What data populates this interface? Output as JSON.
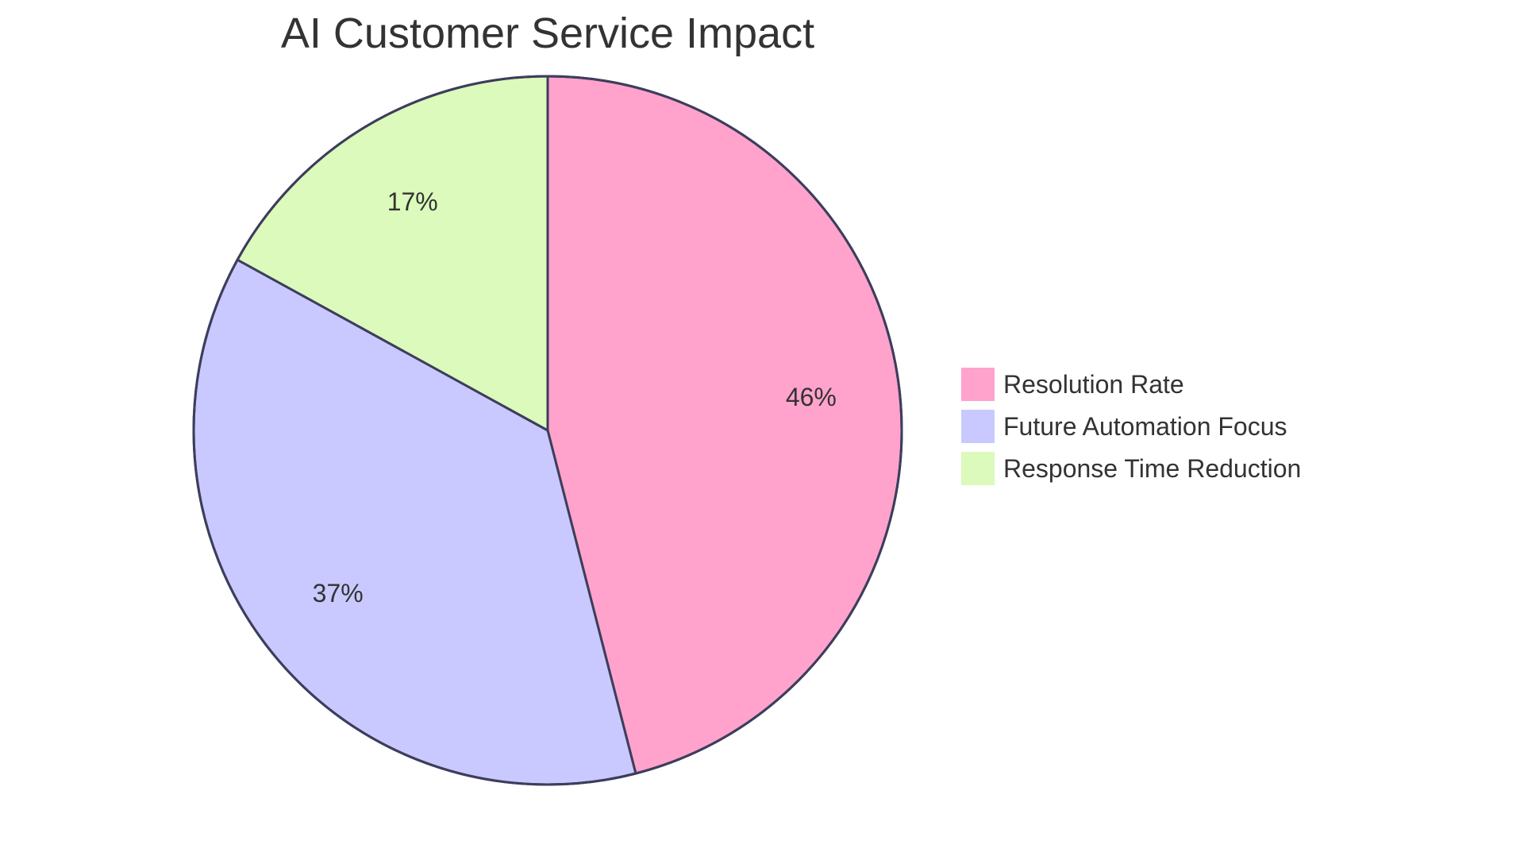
{
  "chart_data": {
    "type": "pie",
    "title": "AI Customer Service Impact",
    "categories": [
      "Resolution Rate",
      "Future Automation Focus",
      "Response Time Reduction"
    ],
    "values": [
      46,
      37,
      17
    ],
    "value_labels": [
      "46%",
      "37%",
      "17%"
    ],
    "colors": [
      "#FFA3CC",
      "#C9C9FF",
      "#DBFABB"
    ],
    "stroke_color": "#3D3D5C",
    "legend": "right"
  }
}
